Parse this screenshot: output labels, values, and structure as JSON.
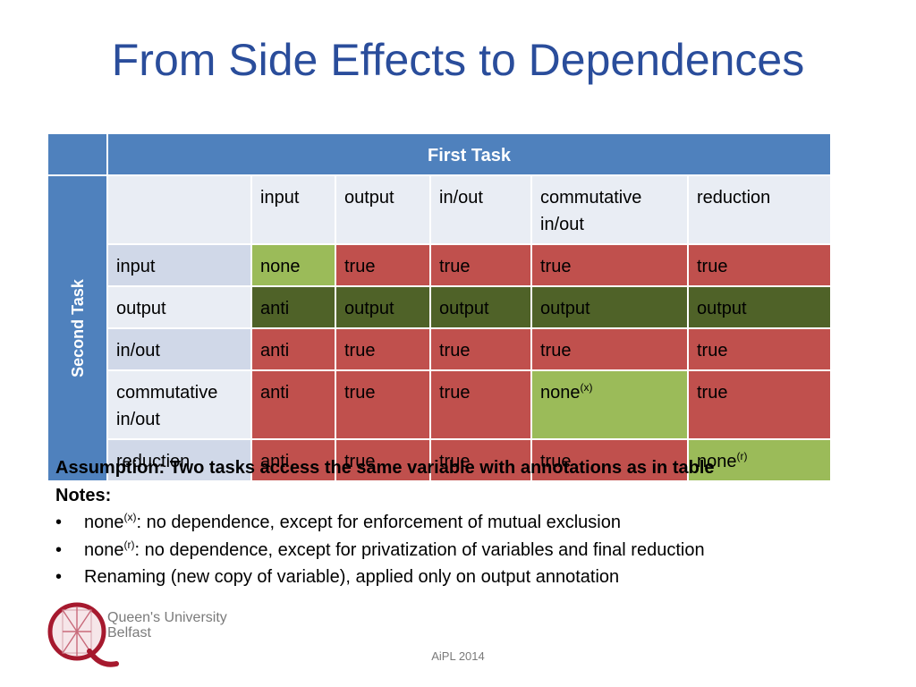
{
  "title": "From Side Effects to Dependences",
  "table": {
    "header_first_task": "First Task",
    "header_second_task": "Second Task",
    "columns": [
      "input",
      "output",
      "in/out",
      "commutative in/out",
      "reduction"
    ],
    "rows": [
      {
        "label": "input",
        "cells": [
          {
            "text": "none",
            "sup": "",
            "color": "green"
          },
          {
            "text": "true",
            "sup": "",
            "color": "red"
          },
          {
            "text": "true",
            "sup": "",
            "color": "red"
          },
          {
            "text": "true",
            "sup": "",
            "color": "red"
          },
          {
            "text": "true",
            "sup": "",
            "color": "red"
          }
        ]
      },
      {
        "label": "output",
        "cells": [
          {
            "text": "anti",
            "sup": "",
            "color": "dark-green"
          },
          {
            "text": "output",
            "sup": "",
            "color": "dark-green"
          },
          {
            "text": "output",
            "sup": "",
            "color": "dark-green"
          },
          {
            "text": "output",
            "sup": "",
            "color": "dark-green"
          },
          {
            "text": "output",
            "sup": "",
            "color": "dark-green"
          }
        ]
      },
      {
        "label": "in/out",
        "cells": [
          {
            "text": "anti",
            "sup": "",
            "color": "red"
          },
          {
            "text": "true",
            "sup": "",
            "color": "red"
          },
          {
            "text": "true",
            "sup": "",
            "color": "red"
          },
          {
            "text": "true",
            "sup": "",
            "color": "red"
          },
          {
            "text": "true",
            "sup": "",
            "color": "red"
          }
        ]
      },
      {
        "label": "commutative in/out",
        "cells": [
          {
            "text": "anti",
            "sup": "",
            "color": "red"
          },
          {
            "text": "true",
            "sup": "",
            "color": "red"
          },
          {
            "text": "true",
            "sup": "",
            "color": "red"
          },
          {
            "text": "none",
            "sup": "(x)",
            "color": "green"
          },
          {
            "text": "true",
            "sup": "",
            "color": "red"
          }
        ]
      },
      {
        "label": "reduction",
        "cells": [
          {
            "text": "anti",
            "sup": "",
            "color": "red"
          },
          {
            "text": "true",
            "sup": "",
            "color": "red"
          },
          {
            "text": "true",
            "sup": "",
            "color": "red"
          },
          {
            "text": "true",
            "sup": "",
            "color": "red"
          },
          {
            "text": "none",
            "sup": "(r)",
            "color": "green"
          }
        ]
      }
    ]
  },
  "assumption": "Assumption: Two tasks access the same variable with annotations as in table",
  "notes_heading": "Notes:",
  "notes": [
    {
      "pre": "none",
      "sup": "(x)",
      "text": ": no dependence, except for enforcement of mutual exclusion"
    },
    {
      "pre": "none",
      "sup": "(r)",
      "text": ": no dependence, except for privatization of variables and final reduction"
    },
    {
      "pre": "",
      "sup": "",
      "text": "Renaming (new copy of variable), applied only on output annotation"
    }
  ],
  "bullet_char": "•",
  "logo": {
    "line1": "Queen's University",
    "line2": "Belfast",
    "letter": "Q"
  },
  "footer": "AiPL 2014",
  "colors": {
    "title": "#2a4d9b",
    "header_blue": "#4f81bd",
    "green": "#9bbb59",
    "red": "#c0504d",
    "dark_green": "#4f6228",
    "logo_red": "#a6192e"
  }
}
